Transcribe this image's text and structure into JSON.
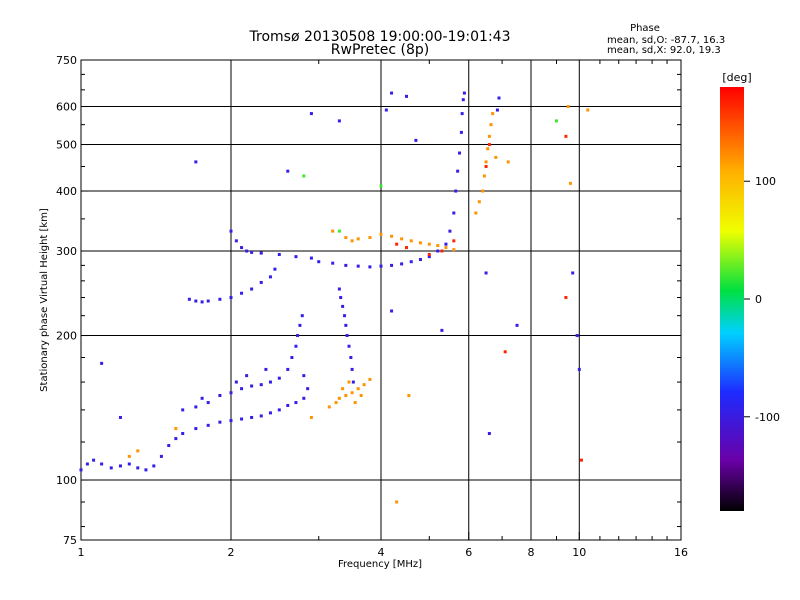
{
  "chart_data": {
    "type": "scatter",
    "title": "Tromsø 20130508 19:00:00-19:01:43",
    "subtitle": "RwPretec (8p)",
    "xlabel": "Frequency [MHz]",
    "ylabel": "Stationary phase Virtual Height [km]",
    "x_scale": "log",
    "y_scale": "log",
    "xlim": [
      1,
      16
    ],
    "ylim": [
      75,
      750
    ],
    "x_ticks": [
      1,
      2,
      4,
      6,
      8,
      10,
      16
    ],
    "x_tick_labels": [
      "1",
      "2",
      "4",
      "6",
      "8",
      "10",
      "16"
    ],
    "y_ticks": [
      75,
      100,
      200,
      300,
      400,
      500,
      600,
      750
    ],
    "y_tick_labels": [
      "75",
      "100",
      "200",
      "300",
      "400",
      "500",
      "600",
      "750"
    ],
    "x_gridlines": [
      2,
      4,
      6,
      8,
      10
    ],
    "y_gridlines": [
      100,
      200,
      300,
      400,
      500,
      600
    ],
    "grid": true,
    "stats": {
      "heading": "Phase",
      "line_o": "mean, sd,O: -87.7, 16.3",
      "line_x": "mean, sd,X:  92.0, 19.3"
    },
    "colorbar": {
      "label": "[deg]",
      "range": [
        -180,
        180
      ],
      "ticks": [
        100,
        0,
        -100
      ],
      "tick_labels": [
        "100",
        "0",
        "-100"
      ],
      "colormap": "rainbow (black-purple-blue-cyan-green-yellow-orange-red)"
    },
    "series": [
      {
        "color_value": -95,
        "points": [
          [
            1.0,
            105
          ],
          [
            1.03,
            108
          ],
          [
            1.06,
            110
          ],
          [
            1.1,
            108
          ],
          [
            1.15,
            106
          ],
          [
            1.2,
            107
          ],
          [
            1.25,
            108
          ],
          [
            1.3,
            106
          ],
          [
            1.35,
            105
          ],
          [
            1.4,
            107
          ],
          [
            1.45,
            112
          ],
          [
            1.5,
            118
          ],
          [
            1.55,
            122
          ],
          [
            1.6,
            125
          ],
          [
            1.7,
            128
          ],
          [
            1.8,
            130
          ],
          [
            1.9,
            132
          ],
          [
            2.0,
            133
          ],
          [
            2.1,
            134
          ],
          [
            2.2,
            135
          ],
          [
            2.3,
            136
          ],
          [
            2.4,
            138
          ],
          [
            2.5,
            140
          ],
          [
            2.6,
            143
          ],
          [
            2.7,
            145
          ],
          [
            2.8,
            148
          ],
          [
            1.8,
            145
          ],
          [
            1.9,
            150
          ],
          [
            2.0,
            152
          ],
          [
            2.1,
            155
          ],
          [
            2.2,
            157
          ],
          [
            2.3,
            158
          ],
          [
            2.4,
            160
          ],
          [
            2.5,
            163
          ],
          [
            2.6,
            170
          ],
          [
            2.65,
            180
          ],
          [
            2.7,
            190
          ],
          [
            2.72,
            200
          ],
          [
            2.75,
            210
          ],
          [
            2.78,
            220
          ],
          [
            2.8,
            165
          ],
          [
            2.85,
            155
          ],
          [
            1.6,
            140
          ],
          [
            1.7,
            142
          ],
          [
            1.75,
            148
          ],
          [
            2.05,
            160
          ],
          [
            2.15,
            165
          ],
          [
            2.35,
            170
          ],
          [
            1.65,
            238
          ],
          [
            1.7,
            236
          ],
          [
            1.75,
            235
          ],
          [
            1.8,
            236
          ],
          [
            1.9,
            238
          ],
          [
            2.0,
            240
          ],
          [
            2.1,
            245
          ],
          [
            2.2,
            250
          ],
          [
            2.3,
            258
          ],
          [
            2.4,
            265
          ],
          [
            2.45,
            275
          ],
          [
            2.0,
            330
          ],
          [
            2.05,
            315
          ],
          [
            2.1,
            305
          ],
          [
            2.15,
            300
          ],
          [
            2.2,
            298
          ],
          [
            2.3,
            297
          ],
          [
            2.5,
            295
          ],
          [
            2.7,
            292
          ],
          [
            2.9,
            290
          ],
          [
            3.0,
            285
          ],
          [
            3.2,
            283
          ],
          [
            3.4,
            280
          ],
          [
            3.6,
            279
          ],
          [
            3.8,
            278
          ],
          [
            4.0,
            279
          ],
          [
            4.2,
            280
          ],
          [
            4.4,
            282
          ],
          [
            4.6,
            285
          ],
          [
            4.8,
            288
          ],
          [
            5.0,
            292
          ],
          [
            5.2,
            300
          ],
          [
            5.4,
            310
          ],
          [
            5.5,
            330
          ],
          [
            5.6,
            360
          ],
          [
            5.65,
            400
          ],
          [
            5.7,
            440
          ],
          [
            5.75,
            480
          ],
          [
            5.8,
            530
          ],
          [
            5.82,
            580
          ],
          [
            5.85,
            620
          ],
          [
            5.88,
            640
          ],
          [
            3.3,
            250
          ],
          [
            3.32,
            240
          ],
          [
            3.35,
            230
          ],
          [
            3.38,
            220
          ],
          [
            3.4,
            210
          ],
          [
            3.42,
            200
          ],
          [
            3.45,
            190
          ],
          [
            3.48,
            180
          ],
          [
            3.5,
            170
          ],
          [
            3.52,
            160
          ],
          [
            4.2,
            640
          ],
          [
            4.5,
            630
          ],
          [
            4.1,
            590
          ],
          [
            4.7,
            510
          ],
          [
            3.3,
            560
          ],
          [
            2.9,
            580
          ],
          [
            1.7,
            460
          ],
          [
            6.9,
            625
          ],
          [
            6.85,
            590
          ],
          [
            7.5,
            210
          ],
          [
            6.5,
            270
          ],
          [
            4.2,
            225
          ],
          [
            5.3,
            205
          ],
          [
            1.1,
            175
          ],
          [
            10.0,
            170
          ],
          [
            9.9,
            200
          ],
          [
            9.7,
            270
          ],
          [
            6.6,
            125
          ],
          [
            1.2,
            135
          ],
          [
            2.6,
            440
          ]
        ]
      },
      {
        "color_value": 120,
        "points": [
          [
            3.3,
            148
          ],
          [
            3.4,
            150
          ],
          [
            3.5,
            152
          ],
          [
            3.6,
            155
          ],
          [
            3.7,
            158
          ],
          [
            3.8,
            162
          ],
          [
            3.15,
            142
          ],
          [
            3.25,
            145
          ],
          [
            3.35,
            155
          ],
          [
            3.45,
            160
          ],
          [
            3.55,
            145
          ],
          [
            3.65,
            150
          ],
          [
            3.2,
            330
          ],
          [
            3.4,
            320
          ],
          [
            3.5,
            315
          ],
          [
            3.6,
            318
          ],
          [
            3.8,
            320
          ],
          [
            4.0,
            325
          ],
          [
            4.2,
            322
          ],
          [
            4.4,
            318
          ],
          [
            4.6,
            315
          ],
          [
            4.8,
            312
          ],
          [
            5.0,
            310
          ],
          [
            5.2,
            308
          ],
          [
            5.4,
            305
          ],
          [
            5.6,
            302
          ],
          [
            6.2,
            360
          ],
          [
            6.3,
            380
          ],
          [
            6.4,
            400
          ],
          [
            6.45,
            430
          ],
          [
            6.5,
            460
          ],
          [
            6.55,
            490
          ],
          [
            6.6,
            520
          ],
          [
            6.65,
            550
          ],
          [
            6.7,
            580
          ],
          [
            1.3,
            115
          ],
          [
            1.25,
            112
          ],
          [
            1.55,
            128
          ],
          [
            2.9,
            135
          ],
          [
            4.3,
            90
          ],
          [
            9.5,
            600
          ],
          [
            9.6,
            415
          ],
          [
            10.4,
            590
          ],
          [
            7.2,
            460
          ],
          [
            6.8,
            470
          ],
          [
            4.55,
            150
          ]
        ]
      },
      {
        "color_value": 165,
        "points": [
          [
            4.3,
            310
          ],
          [
            4.5,
            305
          ],
          [
            5.0,
            295
          ],
          [
            5.3,
            300
          ],
          [
            5.6,
            315
          ],
          [
            6.5,
            450
          ],
          [
            6.6,
            500
          ],
          [
            9.4,
            520
          ],
          [
            10.1,
            110
          ],
          [
            7.1,
            185
          ],
          [
            9.4,
            240
          ]
        ]
      },
      {
        "color_value": 20,
        "points": [
          [
            3.3,
            330
          ],
          [
            9.0,
            560
          ],
          [
            2.8,
            430
          ],
          [
            4.0,
            410
          ]
        ]
      }
    ]
  }
}
